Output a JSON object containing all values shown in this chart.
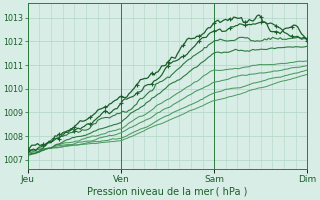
{
  "bg_color": "#d8ede5",
  "grid_color": "#afd4c4",
  "dark_green": "#1a5e2a",
  "mid_green": "#2d7a40",
  "light_green": "#4a9960",
  "text_color": "#1a5e2a",
  "xlabel": "Pression niveau de la mer ( hPa )",
  "yticks": [
    1007,
    1008,
    1009,
    1010,
    1011,
    1012,
    1013
  ],
  "ylim": [
    1006.6,
    1013.6
  ],
  "xlim": [
    0,
    72
  ],
  "xtick_positions": [
    0,
    24,
    48,
    72
  ],
  "xtick_labels": [
    "Jeu",
    "Ven",
    "Sam",
    "Dim"
  ],
  "day_lines": [
    0,
    24,
    48,
    72
  ]
}
